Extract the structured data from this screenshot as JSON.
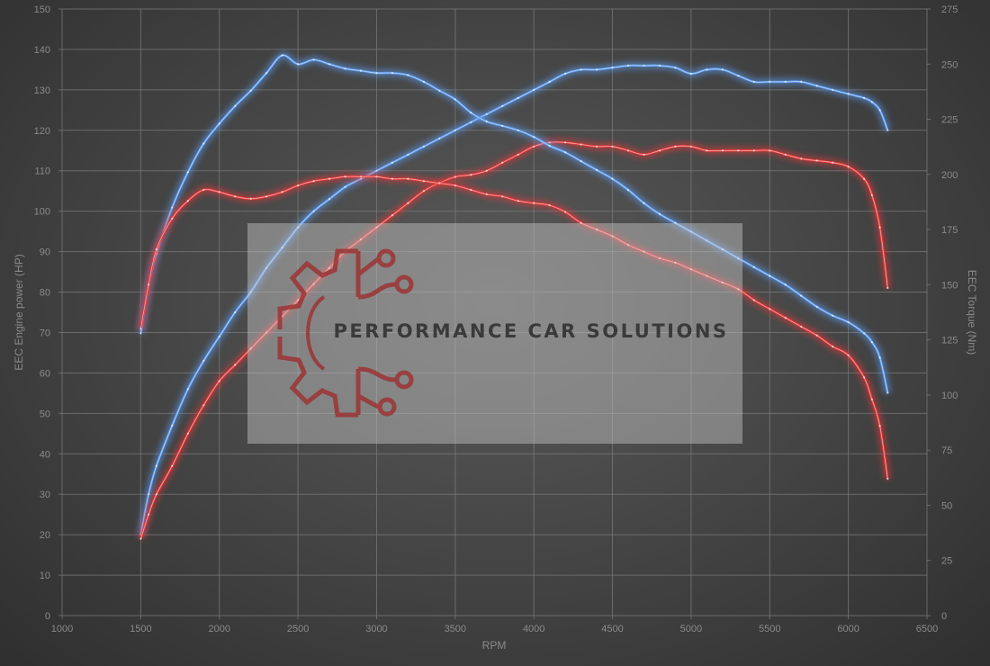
{
  "chart_data": {
    "type": "line",
    "xlabel": "RPM",
    "ylabel_left": "EEC Engine power (HP)",
    "ylabel_right": "EEC Torque (Nm)",
    "xlim": [
      1000,
      6500
    ],
    "ylim_left": [
      0,
      150
    ],
    "ylim_right": [
      0,
      275
    ],
    "x_ticks": [
      1000,
      1500,
      2000,
      2500,
      3000,
      3500,
      4000,
      4500,
      5000,
      5500,
      6000,
      6500
    ],
    "y_left_ticks": [
      0,
      10,
      20,
      30,
      40,
      50,
      60,
      70,
      80,
      90,
      100,
      110,
      120,
      130,
      140,
      150
    ],
    "y_right_ticks": [
      0,
      25,
      50,
      75,
      100,
      125,
      150,
      175,
      200,
      225,
      250,
      275
    ],
    "grid": true,
    "watermark": "PERFORMANCE CAR SOLUTIONS",
    "colors": {
      "tuned": "#5b9bf0",
      "stock": "#e83838"
    },
    "series": [
      {
        "axis": "left",
        "color_key": "tuned",
        "x": [
          1500,
          1550,
          1600,
          1700,
          1800,
          1900,
          2000,
          2100,
          2200,
          2300,
          2400,
          2500,
          2600,
          2700,
          2800,
          2900,
          3000,
          3100,
          3200,
          3300,
          3400,
          3500,
          3600,
          3700,
          3800,
          3900,
          4000,
          4100,
          4200,
          4300,
          4400,
          4500,
          4600,
          4700,
          4800,
          4900,
          5000,
          5100,
          5200,
          5300,
          5400,
          5500,
          5600,
          5700,
          5800,
          5900,
          6000,
          6100,
          6150,
          6200,
          6250
        ],
        "values": [
          20,
          30,
          37,
          47,
          56,
          63,
          69,
          75,
          80,
          86,
          91,
          96,
          100,
          103,
          106,
          108,
          110,
          112,
          114,
          116,
          118,
          120,
          122,
          124,
          126,
          128,
          130,
          132,
          134,
          135,
          135,
          135.5,
          136,
          136,
          136,
          135.5,
          134,
          135,
          135,
          133.5,
          132,
          132,
          132,
          132,
          131,
          130,
          129,
          128,
          127,
          125,
          120
        ]
      },
      {
        "axis": "left",
        "color_key": "stock",
        "x": [
          1500,
          1550,
          1600,
          1700,
          1800,
          1900,
          2000,
          2100,
          2200,
          2300,
          2400,
          2500,
          2600,
          2700,
          2800,
          2900,
          3000,
          3100,
          3200,
          3300,
          3400,
          3500,
          3600,
          3700,
          3800,
          3900,
          4000,
          4100,
          4200,
          4300,
          4400,
          4500,
          4600,
          4700,
          4800,
          4900,
          5000,
          5100,
          5200,
          5300,
          5400,
          5500,
          5600,
          5700,
          5800,
          5900,
          6000,
          6100,
          6150,
          6200,
          6250
        ],
        "values": [
          19,
          25,
          30,
          37,
          45,
          52,
          58,
          62,
          66,
          70,
          74,
          78,
          82,
          86,
          90,
          93,
          96,
          99,
          102,
          105,
          107,
          108.5,
          109,
          110,
          112,
          114,
          116,
          117,
          117,
          116.5,
          116,
          116,
          115,
          114,
          115,
          116,
          116,
          115,
          115,
          115,
          115,
          115,
          114,
          113,
          112.5,
          112,
          111,
          108,
          104,
          96,
          81
        ]
      },
      {
        "axis": "right",
        "color_key": "tuned",
        "x": [
          1500,
          1550,
          1600,
          1700,
          1800,
          1900,
          2000,
          2100,
          2200,
          2300,
          2400,
          2500,
          2600,
          2700,
          2800,
          2900,
          3000,
          3100,
          3200,
          3300,
          3400,
          3500,
          3600,
          3700,
          3800,
          3900,
          4000,
          4100,
          4200,
          4300,
          4400,
          4500,
          4600,
          4700,
          4800,
          4900,
          5000,
          5100,
          5200,
          5300,
          5400,
          5500,
          5600,
          5700,
          5800,
          5900,
          6000,
          6100,
          6150,
          6200,
          6250
        ],
        "values": [
          128,
          150,
          164,
          185,
          201,
          214,
          223,
          231,
          238,
          246,
          254,
          250,
          252,
          250,
          248,
          247,
          246,
          246,
          245,
          242,
          238,
          234,
          228,
          224,
          222,
          220,
          217,
          213,
          210,
          206,
          202,
          198,
          193,
          187,
          182,
          178,
          174,
          170,
          166,
          162,
          158,
          154,
          150,
          145,
          140,
          136,
          133,
          128,
          124,
          117,
          101
        ]
      },
      {
        "axis": "right",
        "color_key": "stock",
        "x": [
          1500,
          1550,
          1600,
          1700,
          1800,
          1900,
          2000,
          2100,
          2200,
          2300,
          2400,
          2500,
          2600,
          2700,
          2800,
          2900,
          3000,
          3100,
          3200,
          3300,
          3400,
          3500,
          3600,
          3700,
          3800,
          3900,
          4000,
          4100,
          4200,
          4300,
          4400,
          4500,
          4600,
          4700,
          4800,
          4900,
          5000,
          5100,
          5200,
          5300,
          5400,
          5500,
          5600,
          5700,
          5800,
          5900,
          6000,
          6100,
          6150,
          6200,
          6250
        ],
        "values": [
          130,
          150,
          166,
          180,
          188,
          193,
          192,
          190,
          189,
          190,
          192,
          195,
          197,
          198,
          199,
          199,
          199,
          198,
          198,
          197,
          196,
          195,
          193,
          191,
          190,
          188,
          187,
          186,
          183,
          178,
          175,
          172,
          168,
          165,
          162,
          160,
          157,
          154,
          151,
          148,
          143,
          139,
          135,
          131,
          127,
          122,
          118,
          108,
          98,
          86,
          62
        ]
      }
    ]
  }
}
